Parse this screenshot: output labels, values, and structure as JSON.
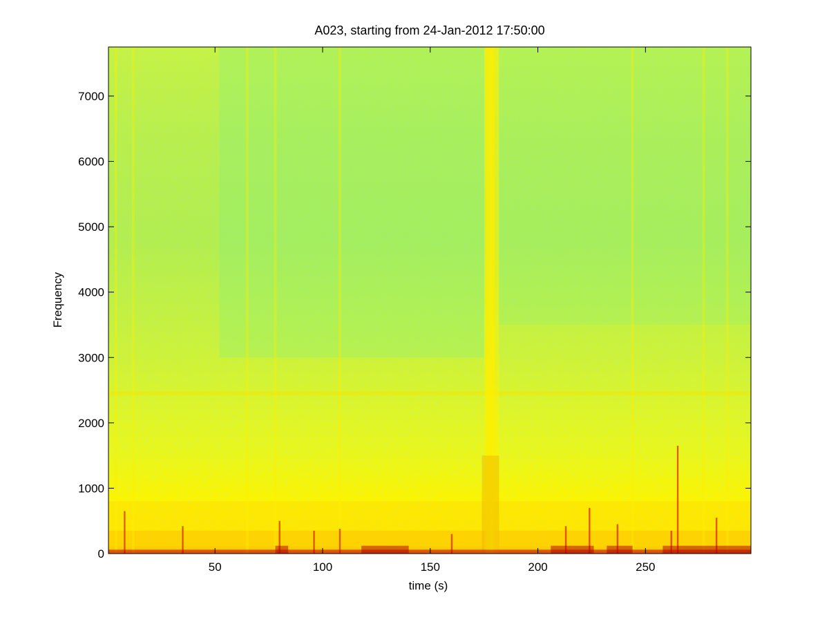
{
  "chart_data": {
    "type": "heatmap",
    "title": "A023, starting from 24-Jan-2012 17:50:00",
    "xlabel": "time (s)",
    "ylabel": "Frequency",
    "xlim": [
      0.5,
      299
    ],
    "ylim": [
      0,
      7750
    ],
    "xticks": [
      50,
      100,
      150,
      200,
      250
    ],
    "yticks": [
      0,
      1000,
      2000,
      3000,
      4000,
      5000,
      6000,
      7000
    ],
    "colormap": "jet",
    "colors": {
      "high": "#d40000",
      "mid_high": "#ffee00",
      "mid": "#c8f23c",
      "low": "#7cf08a"
    },
    "features": {
      "bright_vertical_bands_s": [
        4,
        12,
        65,
        78,
        108,
        177,
        178,
        180,
        244,
        277,
        288
      ],
      "strong_transients_s": [
        8,
        35,
        80,
        96,
        108,
        160,
        213,
        224,
        237,
        262,
        265,
        283
      ],
      "horizontal_band_hz": 2450,
      "low_frequency_energy_below_hz": 800,
      "quiet_segment_start_s": 52
    }
  }
}
